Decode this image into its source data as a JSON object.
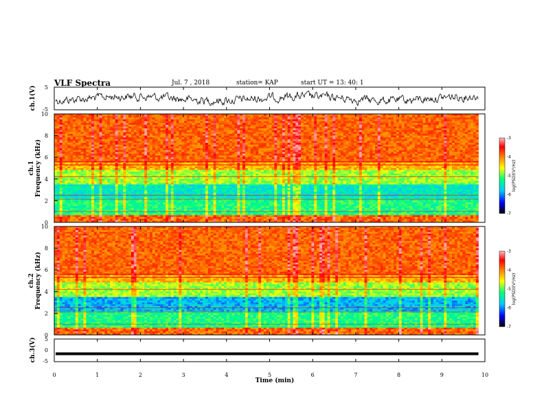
{
  "header": {
    "title": "VLF Spectra",
    "date": "Jul. 7 , 2018",
    "station": "station= KAP",
    "start": "start  UT  =   13: 40: 1"
  },
  "chart_data": [
    {
      "type": "line",
      "panel": "ch1-waveform",
      "ylabel": "ch.1(V)",
      "ylim": [
        -5,
        5
      ],
      "yticks": [
        "5",
        "-5"
      ],
      "xlim": [
        0,
        10
      ],
      "color": "#000000"
    },
    {
      "type": "heatmap",
      "panel": "ch1-spectrogram",
      "ylabel": "ch.1\nFrequency (kHz)",
      "ylim": [
        0,
        10
      ],
      "yticks": [
        "10",
        "8",
        "6",
        "4",
        "2",
        "0"
      ],
      "xlim": [
        0,
        10
      ],
      "colorbar": {
        "label": "log(PSD)(V²/Hz)",
        "range": [
          -7,
          -3
        ],
        "ticks": [
          "-3",
          "-4",
          "-5",
          "-6",
          "-7"
        ],
        "colors": [
          "#000000",
          "#0000ff",
          "#00c8ff",
          "#00ff80",
          "#ffff00",
          "#ff8000",
          "#ff0000",
          "#ffc0c0"
        ]
      }
    },
    {
      "type": "heatmap",
      "panel": "ch2-spectrogram",
      "ylabel": "ch.2\nFrequency (kHz)",
      "ylim": [
        0,
        10
      ],
      "yticks": [
        "10",
        "8",
        "6",
        "4",
        "2",
        "0"
      ],
      "xlim": [
        0,
        10
      ],
      "colorbar": {
        "label": "log(PSD)(V²/Hz)",
        "range": [
          -7,
          -3
        ],
        "ticks": [
          "-3",
          "-4",
          "-5",
          "-6",
          "-7"
        ],
        "colors": [
          "#000000",
          "#0000ff",
          "#00c8ff",
          "#00ff80",
          "#ffff00",
          "#ff8000",
          "#ff0000",
          "#ffc0c0"
        ]
      }
    },
    {
      "type": "line",
      "panel": "ch3-waveform",
      "ylabel": "ch.3(V)",
      "ylim": [
        -5,
        5
      ],
      "yticks": [
        "5",
        "0",
        "-5"
      ],
      "xlim": [
        0,
        10
      ],
      "xlabel": "Time (min)",
      "xticks": [
        "0",
        "1",
        "2",
        "3",
        "4",
        "5",
        "6",
        "7",
        "8",
        "9",
        "10"
      ],
      "values": [
        -1.5,
        -1.5
      ],
      "color": "#000000"
    }
  ]
}
